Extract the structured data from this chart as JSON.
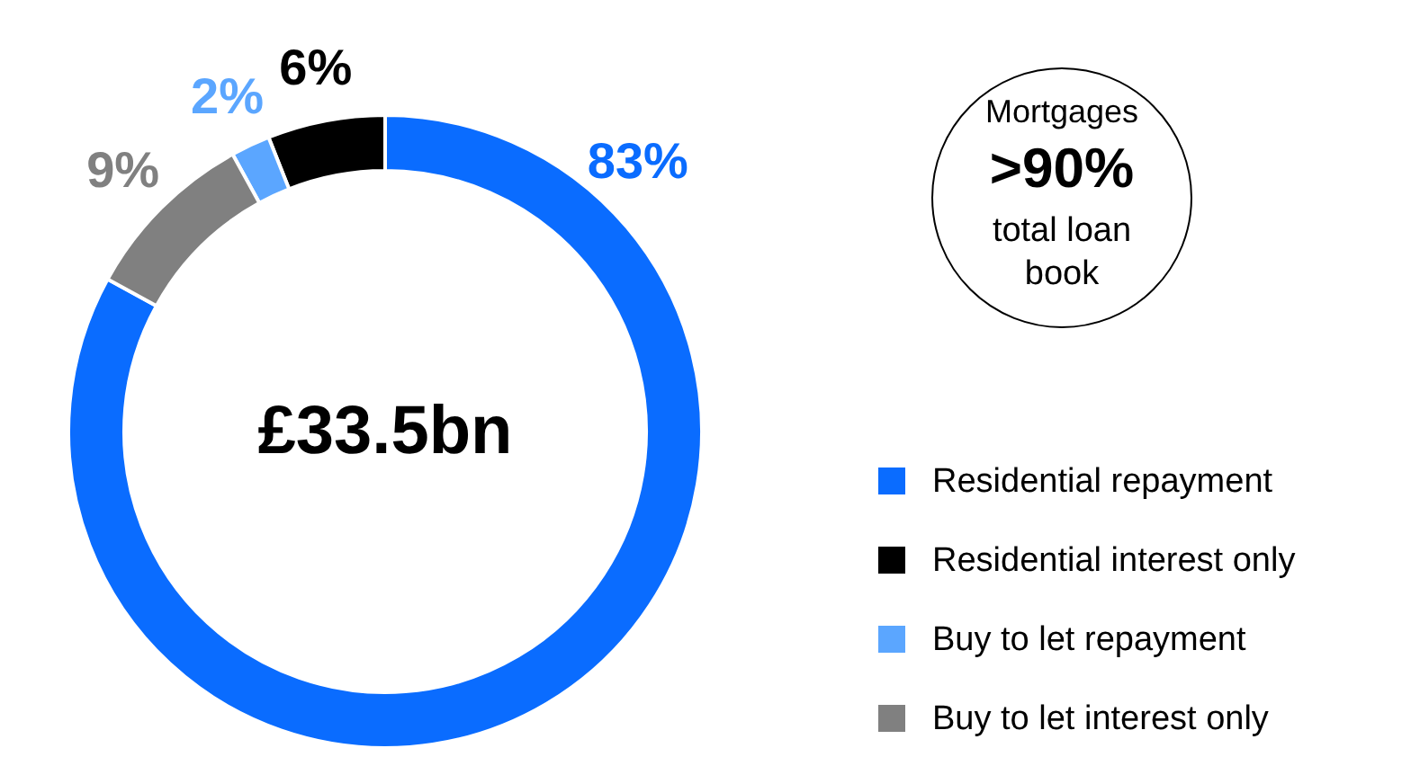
{
  "chart_data": {
    "type": "donut",
    "categories": [
      "Residential repayment",
      "Residential interest only",
      "Buy to let repayment",
      "Buy to let interest only"
    ],
    "values": [
      83,
      6,
      2,
      9
    ],
    "colors": [
      "#0a6cff",
      "#000000",
      "#5ba6ff",
      "#808080"
    ],
    "value_labels": [
      "83%",
      "6%",
      "2%",
      "9%"
    ],
    "annotations": [
      "£33.5bn",
      "Mortgages",
      ">90%",
      "total loan book"
    ],
    "legend": "bottom right"
  }
}
